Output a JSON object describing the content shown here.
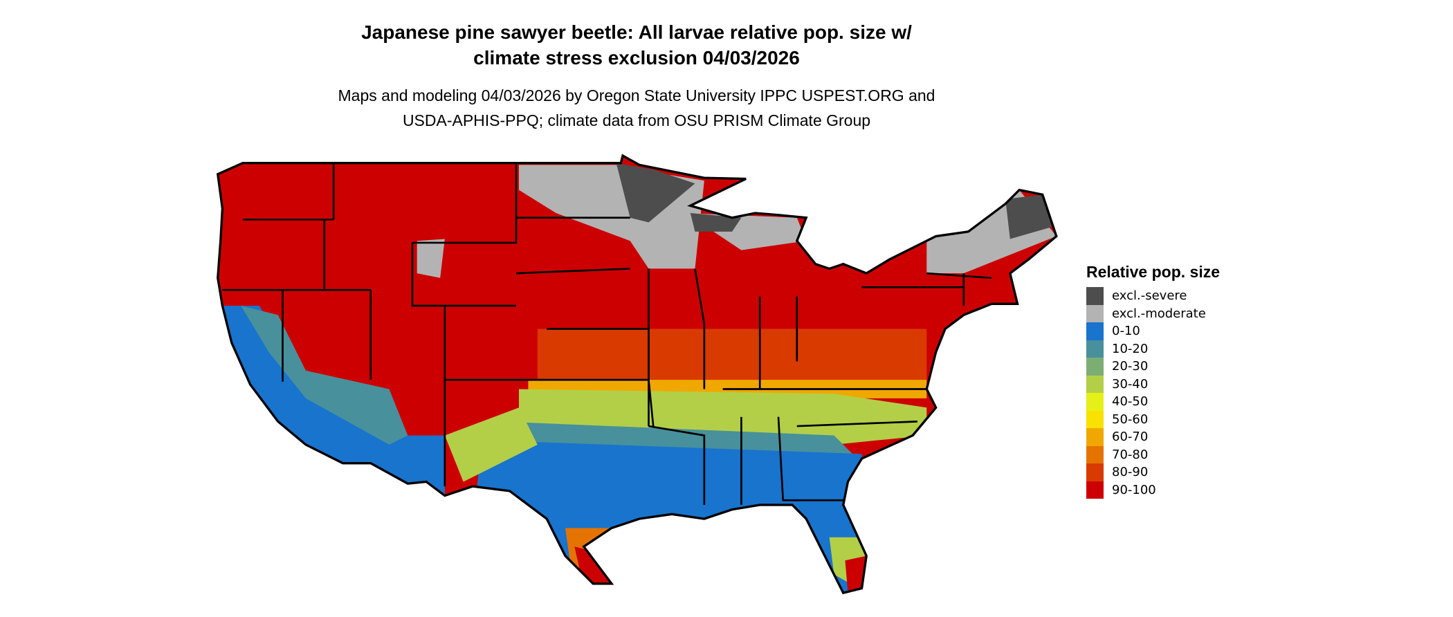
{
  "title_line1": "Japanese pine sawyer beetle: All larvae relative pop. size w/",
  "title_line2": "climate stress exclusion 04/03/2026",
  "subtitle_line1": "Maps and modeling 04/03/2026 by Oregon State University IPPC USPEST.ORG and",
  "subtitle_line2": "USDA-APHIS-PPQ; climate data from OSU PRISM Climate Group",
  "legend": {
    "title": "Relative pop. size",
    "items": [
      {
        "label": "excl.-severe",
        "color": "#4d4d4d"
      },
      {
        "label": "excl.-moderate",
        "color": "#b3b3b3"
      },
      {
        "label": "0-10",
        "color": "#1874cd"
      },
      {
        "label": "10-20",
        "color": "#48909c"
      },
      {
        "label": "20-30",
        "color": "#7cae74"
      },
      {
        "label": "30-40",
        "color": "#b3cf47"
      },
      {
        "label": "40-50",
        "color": "#e5f019"
      },
      {
        "label": "50-60",
        "color": "#f9e100"
      },
      {
        "label": "60-70",
        "color": "#f0a800"
      },
      {
        "label": "70-80",
        "color": "#e57300"
      },
      {
        "label": "80-90",
        "color": "#d93a00"
      },
      {
        "label": "90-100",
        "color": "#cc0000"
      }
    ]
  }
}
